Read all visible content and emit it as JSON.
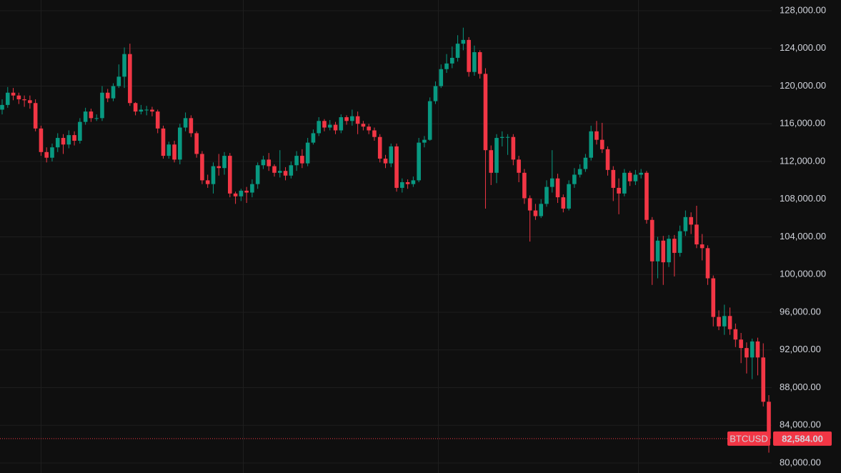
{
  "chart_data": {
    "type": "candlestick",
    "up_color": "#089981",
    "down_color": "#f23645",
    "grid": true,
    "ylim": [
      80000,
      128000
    ],
    "yticks": [
      {
        "value": 80000,
        "label": "80,000.00"
      },
      {
        "value": 84000,
        "label": "84,000.00"
      },
      {
        "value": 88000,
        "label": "88,000.00"
      },
      {
        "value": 92000,
        "label": "92,000.00"
      },
      {
        "value": 96000,
        "label": "96,000.00"
      },
      {
        "value": 100000,
        "label": "100,000.00"
      },
      {
        "value": 104000,
        "label": "104,000.00"
      },
      {
        "value": 108000,
        "label": "108,000.00"
      },
      {
        "value": 112000,
        "label": "112,000.00"
      },
      {
        "value": 116000,
        "label": "116,000.00"
      },
      {
        "value": 120000,
        "label": "120,000.00"
      },
      {
        "value": 124000,
        "label": "124,000.00"
      },
      {
        "value": 128000,
        "label": "128,000.00"
      }
    ],
    "last_price": {
      "symbol": "BTCUSD",
      "value": 82584,
      "label": "82,584.00"
    },
    "open": [
      117500,
      118000,
      119300,
      119000,
      118600,
      118500,
      118200,
      115500,
      113000,
      112400,
      113500,
      114500,
      113800,
      114800,
      114200,
      116200,
      117300,
      116600,
      116600,
      119300,
      118700,
      120000,
      121000,
      123400,
      118200,
      117300,
      117500,
      117500,
      117300,
      115500,
      112600,
      113800,
      112200,
      115600,
      116600,
      115000,
      112800,
      110000,
      109600,
      111500,
      111300,
      112600,
      108600,
      108300,
      108900,
      108700,
      109600,
      111600,
      112200,
      111500,
      110800,
      111000,
      110500,
      111600,
      112600,
      111800,
      114000,
      115000,
      116300,
      115600,
      115900,
      115300,
      116700,
      116300,
      116800,
      116000,
      115700,
      115300,
      114600,
      112300,
      111800,
      113600,
      109200,
      109800,
      109600,
      110000,
      114000,
      114300,
      118400,
      120000,
      121800,
      122400,
      123000,
      124500,
      124900,
      121500,
      123600,
      121300,
      113200,
      110800,
      114500,
      114600,
      114600,
      112200,
      110800,
      108100,
      106800,
      106200,
      107500,
      109300,
      110200,
      108200,
      107000,
      109600,
      110600,
      111200,
      112400,
      115200,
      114300,
      113300,
      111100,
      109200,
      108600,
      110800,
      109900,
      110600,
      110800,
      105800,
      101400,
      103600,
      101300,
      103800,
      102300,
      104600,
      106100,
      105300,
      103200,
      102800,
      99600,
      95500,
      94500,
      95600,
      94200,
      93100,
      92200,
      91200,
      92900,
      91200,
      86500
    ],
    "high": [
      118600,
      119900,
      119800,
      119300,
      119000,
      119000,
      118600,
      115800,
      113500,
      113900,
      115000,
      114900,
      115300,
      115200,
      116600,
      117700,
      117600,
      117000,
      120000,
      119700,
      120300,
      122300,
      124100,
      124500,
      118300,
      118000,
      117900,
      117800,
      117500,
      115800,
      114100,
      114200,
      116000,
      117200,
      116900,
      115200,
      113100,
      110600,
      111900,
      112800,
      113000,
      112900,
      108800,
      109100,
      109300,
      110100,
      111900,
      112600,
      112900,
      111700,
      113200,
      111400,
      112000,
      113100,
      113300,
      114500,
      115400,
      116700,
      116500,
      116400,
      116200,
      117000,
      116900,
      117500,
      117300,
      116300,
      116000,
      115600,
      114900,
      112700,
      113900,
      113900,
      110200,
      110100,
      110400,
      114500,
      114700,
      118800,
      120500,
      122300,
      123400,
      124200,
      125400,
      126200,
      125200,
      124300,
      123800,
      121900,
      113700,
      114900,
      115200,
      114900,
      114900,
      112600,
      111200,
      108400,
      107500,
      108000,
      110000,
      113200,
      110700,
      108500,
      110000,
      111300,
      111700,
      112800,
      115800,
      116300,
      116100,
      113600,
      111500,
      110200,
      111200,
      111000,
      111100,
      111200,
      111000,
      106100,
      104000,
      104100,
      104200,
      104200,
      105200,
      106800,
      106600,
      107300,
      104300,
      103100,
      99900,
      96200,
      96800,
      96500,
      94800,
      93800,
      92800,
      93200,
      93300,
      92700,
      87200
    ],
    "low": [
      117000,
      117700,
      118500,
      118100,
      117800,
      117600,
      115200,
      112600,
      111900,
      112000,
      113000,
      112800,
      113400,
      113700,
      113900,
      115900,
      116200,
      116300,
      116300,
      118300,
      118400,
      119800,
      119800,
      117900,
      116900,
      117000,
      116900,
      116800,
      115000,
      112300,
      112300,
      111900,
      111700,
      115200,
      114600,
      112400,
      109600,
      109200,
      108600,
      110500,
      110600,
      108200,
      107500,
      107800,
      107600,
      108200,
      109100,
      111200,
      111000,
      110400,
      110300,
      110000,
      110200,
      111000,
      111300,
      111500,
      113800,
      114700,
      115200,
      115300,
      114900,
      115000,
      115900,
      115800,
      114900,
      115300,
      114900,
      114200,
      111900,
      111300,
      111400,
      108800,
      108700,
      109100,
      109300,
      109800,
      113500,
      114200,
      118100,
      119800,
      121400,
      121900,
      122600,
      123800,
      121000,
      121100,
      120800,
      107000,
      109500,
      109700,
      113600,
      112700,
      111600,
      109800,
      107500,
      103500,
      105800,
      106000,
      107200,
      108700,
      107600,
      106600,
      106800,
      109200,
      110300,
      110900,
      112100,
      113800,
      112900,
      110500,
      107800,
      106400,
      108300,
      109400,
      109500,
      110200,
      105400,
      98900,
      99600,
      98900,
      100800,
      99800,
      101900,
      104100,
      104300,
      102800,
      101500,
      98900,
      94500,
      94100,
      93600,
      93600,
      92300,
      90600,
      89500,
      88900,
      89300,
      86000,
      81100
    ],
    "close": [
      118000,
      119300,
      119000,
      118600,
      118500,
      118200,
      115500,
      113000,
      112400,
      113500,
      114500,
      113800,
      114800,
      114200,
      116200,
      117300,
      116600,
      116600,
      119300,
      118700,
      120000,
      121000,
      123400,
      118200,
      117300,
      117500,
      117500,
      117300,
      115500,
      112600,
      113800,
      112200,
      115600,
      116600,
      115000,
      112800,
      110000,
      109600,
      111500,
      111300,
      112600,
      108600,
      108300,
      108900,
      108700,
      109600,
      111600,
      112200,
      111500,
      110800,
      111000,
      110500,
      111600,
      112600,
      111800,
      114000,
      115000,
      116300,
      115600,
      115900,
      115300,
      116700,
      116300,
      116800,
      116000,
      115700,
      115300,
      114600,
      112300,
      111800,
      113600,
      109200,
      109800,
      109600,
      110000,
      114000,
      114300,
      118400,
      120000,
      121800,
      122400,
      123000,
      124500,
      124900,
      121500,
      123600,
      121300,
      113200,
      110800,
      114500,
      114600,
      114600,
      112200,
      110800,
      108100,
      106800,
      106200,
      107500,
      109300,
      110200,
      108200,
      107000,
      109600,
      110600,
      111200,
      112400,
      115200,
      114300,
      113300,
      111100,
      109200,
      108600,
      110800,
      109900,
      110600,
      110800,
      105800,
      101400,
      103600,
      101300,
      103800,
      102300,
      104600,
      106100,
      105300,
      103200,
      102800,
      99600,
      95500,
      94500,
      95600,
      94200,
      93100,
      92200,
      91200,
      92900,
      91200,
      86500,
      82584
    ]
  }
}
